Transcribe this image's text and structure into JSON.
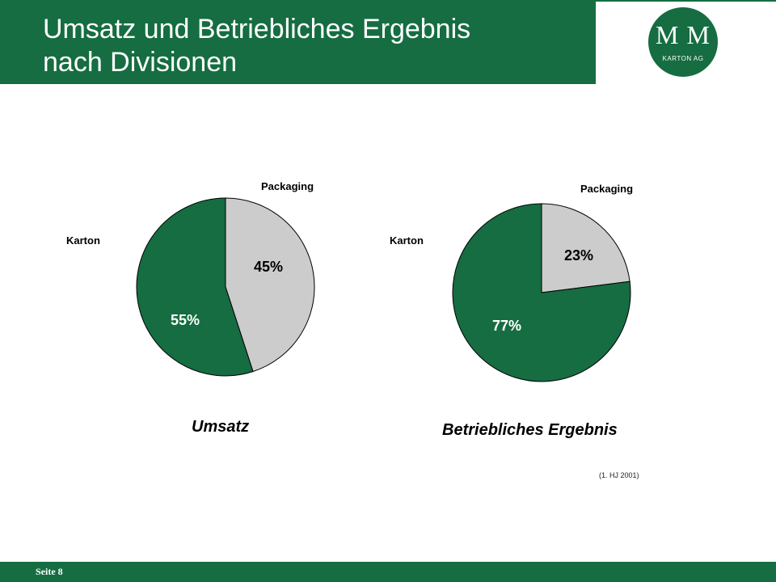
{
  "header": {
    "title_line1": "Umsatz und Betriebliches Ergebnis",
    "title_line2": "nach Divisionen"
  },
  "logo": {
    "main": "M M",
    "sub": "KARTON AG"
  },
  "chart_data": [
    {
      "type": "pie",
      "title": "Umsatz",
      "categories": [
        "Packaging",
        "Karton"
      ],
      "values": [
        45,
        55
      ],
      "value_labels": [
        "45%",
        "55%"
      ],
      "colors": [
        "#cccccc",
        "#156d41"
      ]
    },
    {
      "type": "pie",
      "title": "Betriebliches Ergebnis",
      "categories": [
        "Packaging",
        "Karton"
      ],
      "values": [
        23,
        77
      ],
      "value_labels": [
        "23%",
        "77%"
      ],
      "colors": [
        "#cccccc",
        "#156d41"
      ]
    }
  ],
  "note": "(1. HJ 2001)",
  "footer": {
    "page_label": "Seite 8"
  }
}
